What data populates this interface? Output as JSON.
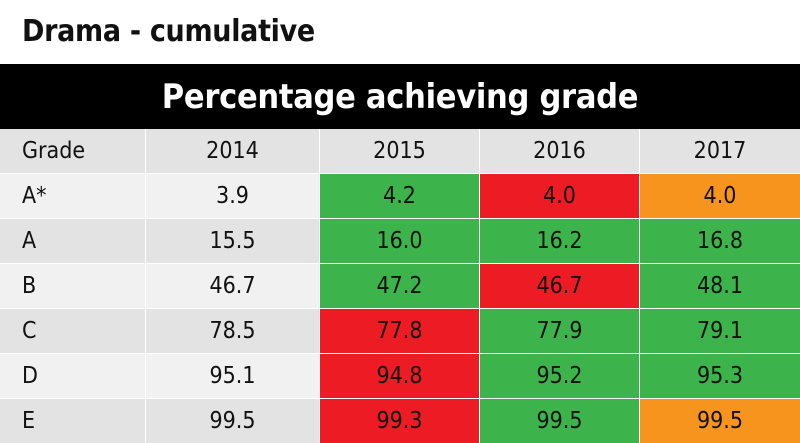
{
  "title": "Drama - cumulative",
  "banner": "Percentage achieving grade",
  "colors": {
    "green": "#3cb44b",
    "red": "#ed1c24",
    "orange": "#f7941d",
    "header_bg": "#000000"
  },
  "table": {
    "headers": [
      "Grade",
      "2014",
      "2015",
      "2016",
      "2017"
    ],
    "rows": [
      {
        "grade": "A*",
        "values": [
          "3.9",
          "4.2",
          "4.0",
          "4.0"
        ],
        "status": [
          "none",
          "green",
          "red",
          "orange"
        ]
      },
      {
        "grade": "A",
        "values": [
          "15.5",
          "16.0",
          "16.2",
          "16.8"
        ],
        "status": [
          "none",
          "green",
          "green",
          "green"
        ]
      },
      {
        "grade": "B",
        "values": [
          "46.7",
          "47.2",
          "46.7",
          "48.1"
        ],
        "status": [
          "none",
          "green",
          "red",
          "green"
        ]
      },
      {
        "grade": "C",
        "values": [
          "78.5",
          "77.8",
          "77.9",
          "79.1"
        ],
        "status": [
          "none",
          "red",
          "green",
          "green"
        ]
      },
      {
        "grade": "D",
        "values": [
          "95.1",
          "94.8",
          "95.2",
          "95.3"
        ],
        "status": [
          "none",
          "red",
          "green",
          "green"
        ]
      },
      {
        "grade": "E",
        "values": [
          "99.5",
          "99.3",
          "99.5",
          "99.5"
        ],
        "status": [
          "none",
          "red",
          "green",
          "orange"
        ]
      }
    ]
  }
}
